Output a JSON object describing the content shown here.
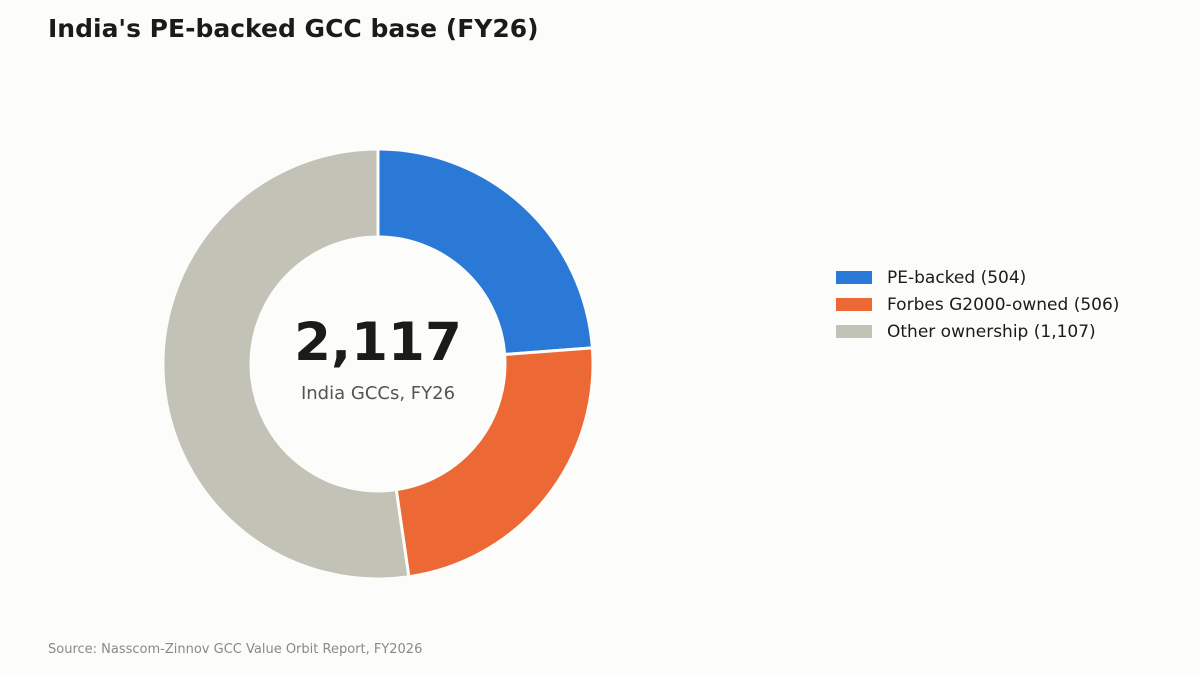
{
  "chart_data": {
    "type": "pie",
    "title": "India's PE-backed GCC base (FY26)",
    "center_value": "2,117",
    "center_label": "India GCCs, FY26",
    "categories": [
      "PE-backed (504)",
      "Forbes G2000-owned (506)",
      "Other ownership (1,107)"
    ],
    "values": [
      504,
      506,
      1107
    ],
    "colors": [
      "#2a79d7",
      "#ec6834",
      "#c2c2b6"
    ],
    "legend_position": "right",
    "source": "Source: Nasscom-Zinnov GCC Value Orbit Report, FY2026"
  }
}
